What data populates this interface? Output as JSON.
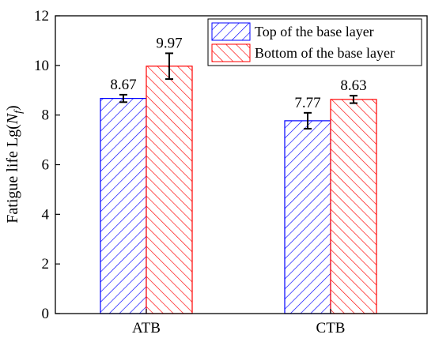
{
  "chart_data": {
    "type": "bar",
    "categories": [
      "ATB",
      "CTB"
    ],
    "series": [
      {
        "name": "Top of the base layer",
        "values": [
          8.67,
          7.77
        ],
        "labels": [
          "8.67",
          "7.77"
        ],
        "error": [
          0.15,
          0.32
        ],
        "color": "#0000ff",
        "hatch": "diagonal-up"
      },
      {
        "name": "Bottom of the base layer",
        "values": [
          9.97,
          8.63
        ],
        "labels": [
          "9.97",
          "8.63"
        ],
        "error": [
          0.52,
          0.15
        ],
        "color": "#ff0000",
        "hatch": "diagonal-down"
      }
    ],
    "ylabel_prefix": "Fatigue life Lg(",
    "ylabel_var": "N",
    "ylabel_sub": "f",
    "ylabel_suffix": ")",
    "ylim": [
      0,
      12
    ],
    "yticks": [
      0,
      2,
      4,
      6,
      8,
      10,
      12
    ],
    "grid": false,
    "legend_position": "top-right"
  }
}
